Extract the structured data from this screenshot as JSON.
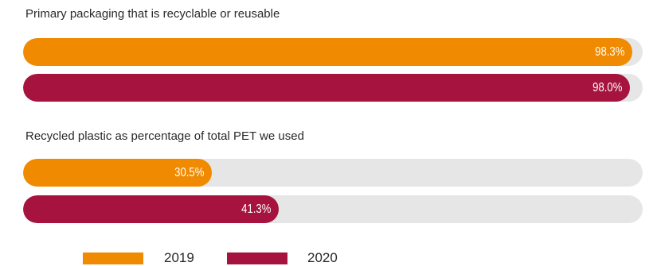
{
  "colors": {
    "y2019": "#f08a00",
    "y2020": "#a5133e",
    "track": "#e6e6e6"
  },
  "chart_data": {
    "type": "bar",
    "orientation": "horizontal",
    "xlim": [
      0,
      100
    ],
    "categories": [
      "Primary packaging that is recyclable or reusable",
      "Recycled plastic as percentage of total PET we used"
    ],
    "series": [
      {
        "name": "2019",
        "values": [
          98.3,
          30.5
        ],
        "labels": [
          "98.3%",
          "30.5%"
        ]
      },
      {
        "name": "2020",
        "values": [
          98.0,
          41.3
        ],
        "labels": [
          "98.0%",
          "41.3%"
        ]
      }
    ],
    "legend": {
      "placement": "bottom",
      "entries": [
        "2019",
        "2020"
      ]
    }
  }
}
